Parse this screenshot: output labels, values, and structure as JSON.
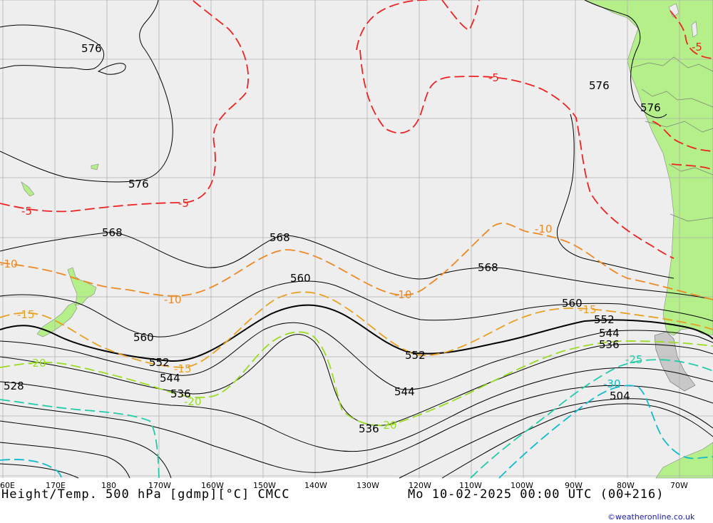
{
  "title_left": "Height/Temp. 500 hPa [gdmp][°C] CMCC",
  "title_right": "Mo 10-02-2025 00:00 UTC (00+216)",
  "credit": "©weatheronline.co.uk",
  "lon_ticks": [
    "60E",
    "170E",
    "180",
    "170W",
    "160W",
    "150W",
    "140W",
    "130W",
    "120W",
    "110W",
    "100W",
    "90W",
    "80W",
    "70W"
  ],
  "height_labels": [
    "576",
    "576",
    "576",
    "576",
    "568",
    "568",
    "568",
    "560",
    "560",
    "560",
    "552",
    "552",
    "552",
    "544",
    "544",
    "544",
    "536",
    "536",
    "536",
    "528",
    "504"
  ],
  "temp_labels": [
    "-5",
    "-5",
    "-5",
    "-5",
    "-10",
    "-10",
    "-10",
    "-10",
    "-15",
    "-15",
    "-15",
    "-20",
    "-20",
    "-20",
    "-25",
    "-30"
  ],
  "colors": {
    "land": "#b4ef8a",
    "sea": "#eeeeee",
    "grid": "#b0b0b0",
    "height": "#000000",
    "t_minus5": "#ee2222",
    "t_minus10": "#ee8822",
    "t_minus15": "#e8a020",
    "t_minus20": "#99dd22",
    "t_minus25": "#22ccaa",
    "t_minus30": "#11bbcc"
  }
}
